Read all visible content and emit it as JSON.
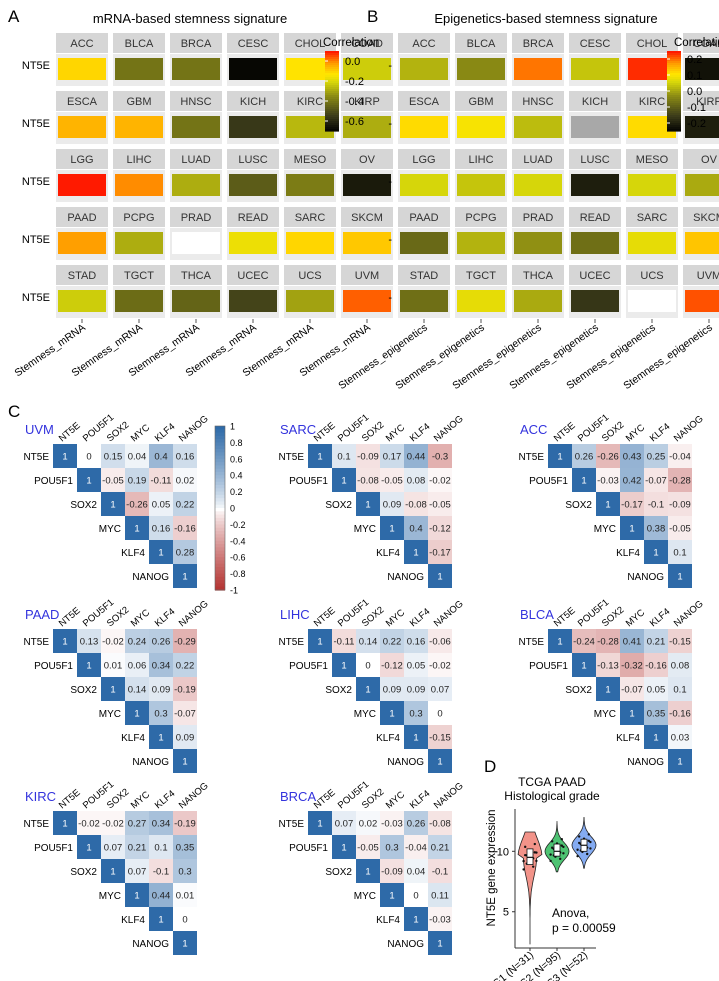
{
  "panelA": {
    "letter": "A",
    "title": "mRNA-based stemness signature",
    "row_label": "NT5E",
    "x_label": "Stemness_mRNA",
    "legend_title": "Correlation",
    "legend_ticks": [
      "0.0",
      "-0.2",
      "-0.4",
      "-0.6"
    ],
    "scale": {
      "min": -0.7,
      "max": 0.1
    },
    "rows": [
      [
        {
          "name": "ACC",
          "value": -0.1
        },
        {
          "name": "BLCA",
          "value": -0.4
        },
        {
          "name": "BRCA",
          "value": -0.4
        },
        {
          "name": "CESC",
          "value": -0.68
        },
        {
          "name": "CHOL",
          "value": -0.12
        },
        {
          "name": "COAD",
          "value": -0.22
        }
      ],
      [
        {
          "name": "ESCA",
          "value": -0.05
        },
        {
          "name": "GBM",
          "value": -0.05
        },
        {
          "name": "HNSC",
          "value": -0.4
        },
        {
          "name": "KICH",
          "value": -0.55
        },
        {
          "name": "KIRC",
          "value": -0.26
        },
        {
          "name": "KIRP",
          "value": -0.28
        }
      ],
      [
        {
          "name": "LGG",
          "value": 0.1
        },
        {
          "name": "LIHC",
          "value": 0.0
        },
        {
          "name": "LUAD",
          "value": -0.28
        },
        {
          "name": "LUSC",
          "value": -0.46
        },
        {
          "name": "MESO",
          "value": -0.38
        },
        {
          "name": "OV",
          "value": -0.63
        }
      ],
      [
        {
          "name": "PAAD",
          "value": -0.02
        },
        {
          "name": "PCPG",
          "value": -0.28
        },
        {
          "name": "PRAD",
          "value": null
        },
        {
          "name": "READ",
          "value": -0.16
        },
        {
          "name": "SARC",
          "value": -0.1
        },
        {
          "name": "SKCM",
          "value": -0.08
        }
      ],
      [
        {
          "name": "STAD",
          "value": -0.22
        },
        {
          "name": "TGCT",
          "value": -0.42
        },
        {
          "name": "THCA",
          "value": -0.44
        },
        {
          "name": "UCEC",
          "value": -0.52
        },
        {
          "name": "UCS",
          "value": -0.3
        },
        {
          "name": "UVM",
          "value": 0.04
        }
      ]
    ]
  },
  "panelB": {
    "letter": "B",
    "title": "Epigenetics-based stemness signature",
    "row_label": "-",
    "x_label": "Stemness_epigenetics",
    "legend_title": "Correlation",
    "legend_ticks": [
      "0.2",
      "0.1",
      "0.0",
      "-0.1",
      "-0.2"
    ],
    "scale": {
      "min": -0.25,
      "max": 0.25
    },
    "rows": [
      [
        {
          "name": "ACC",
          "value": 0.02
        },
        {
          "name": "BLCA",
          "value": -0.03
        },
        {
          "name": "BRCA",
          "value": 0.2
        },
        {
          "name": "CESC",
          "value": 0.04
        },
        {
          "name": "CHOL",
          "value": 0.24
        },
        {
          "name": "COAD",
          "value": -0.22
        }
      ],
      [
        {
          "name": "ESCA",
          "value": 0.12
        },
        {
          "name": "GBM",
          "value": 0.1
        },
        {
          "name": "HNSC",
          "value": 0.03
        },
        {
          "name": "KICH",
          "value": null
        },
        {
          "name": "KIRC",
          "value": 0.12
        },
        {
          "name": "KIRP",
          "value": -0.2
        }
      ],
      [
        {
          "name": "LGG",
          "value": 0.06
        },
        {
          "name": "LIHC",
          "value": 0.04
        },
        {
          "name": "LUAD",
          "value": 0.06
        },
        {
          "name": "LUSC",
          "value": -0.2
        },
        {
          "name": "MESO",
          "value": 0.06
        },
        {
          "name": "OV",
          "value": 0.01
        }
      ],
      [
        {
          "name": "PAAD",
          "value": -0.08
        },
        {
          "name": "PCPG",
          "value": 0.02
        },
        {
          "name": "PRAD",
          "value": -0.02
        },
        {
          "name": "READ",
          "value": -0.07
        },
        {
          "name": "SARC",
          "value": 0.08
        },
        {
          "name": "SKCM",
          "value": 0.14
        }
      ],
      [
        {
          "name": "STAD",
          "value": -0.07
        },
        {
          "name": "TGCT",
          "value": 0.08
        },
        {
          "name": "THCA",
          "value": 0.01
        },
        {
          "name": "UCEC",
          "value": -0.16
        },
        {
          "name": "UCS",
          "value": null
        },
        {
          "name": "UVM",
          "value": 0.22
        }
      ]
    ]
  },
  "panelC": {
    "letter": "C",
    "genes": [
      "NT5E",
      "POU5F1",
      "SOX2",
      "MYC",
      "KLF4",
      "NANOG"
    ],
    "legend_ticks": [
      "1",
      "0.8",
      "0.6",
      "0.4",
      "0.2",
      "0",
      "-0.2",
      "-0.4",
      "-0.6",
      "-0.8",
      "-1"
    ],
    "accent": "#3333dd",
    "pos_color": "#2e6aa8",
    "neg_color": "#b2302e",
    "matrices": [
      {
        "name": "UVM",
        "values": [
          [
            1,
            0,
            0.15,
            0.04,
            0.4,
            0.16
          ],
          [
            1,
            -0.05,
            0.19,
            -0.11,
            0.02
          ],
          [
            1,
            -0.26,
            0.05,
            0.22
          ],
          [
            1,
            0.16,
            -0.16
          ],
          [
            1,
            0.28
          ],
          [
            1
          ]
        ]
      },
      {
        "name": "SARC",
        "values": [
          [
            1,
            0.1,
            -0.09,
            0.17,
            0.44,
            -0.3
          ],
          [
            1,
            -0.08,
            -0.05,
            0.08,
            -0.02
          ],
          [
            1,
            0.09,
            -0.08,
            -0.05
          ],
          [
            1,
            0.4,
            -0.12
          ],
          [
            1,
            -0.17
          ],
          [
            1
          ]
        ]
      },
      {
        "name": "ACC",
        "values": [
          [
            1,
            0.26,
            -0.26,
            0.43,
            0.25,
            -0.04
          ],
          [
            1,
            -0.03,
            0.42,
            -0.07,
            -0.28
          ],
          [
            1,
            -0.17,
            -0.1,
            -0.09
          ],
          [
            1,
            0.38,
            -0.05
          ],
          [
            1,
            0.1
          ],
          [
            1
          ]
        ]
      },
      {
        "name": "PAAD",
        "values": [
          [
            1,
            0.13,
            -0.02,
            0.24,
            0.26,
            -0.29
          ],
          [
            1,
            0.01,
            0.06,
            0.34,
            0.22
          ],
          [
            1,
            0.14,
            0.09,
            -0.19
          ],
          [
            1,
            0.3,
            -0.07
          ],
          [
            1,
            0.09
          ],
          [
            1
          ]
        ]
      },
      {
        "name": "LIHC",
        "values": [
          [
            1,
            -0.11,
            0.14,
            0.22,
            0.16,
            -0.06
          ],
          [
            1,
            0,
            -0.12,
            0.05,
            -0.02
          ],
          [
            1,
            0.09,
            0.09,
            0.07
          ],
          [
            1,
            0.3,
            0
          ],
          [
            1,
            -0.15
          ],
          [
            1
          ]
        ]
      },
      {
        "name": "BLCA",
        "values": [
          [
            1,
            -0.24,
            -0.28,
            0.41,
            0.21,
            -0.15
          ],
          [
            1,
            -0.13,
            -0.32,
            -0.16,
            0.08
          ],
          [
            1,
            -0.07,
            0.05,
            0.1
          ],
          [
            1,
            0.35,
            -0.16
          ],
          [
            1,
            0.03
          ],
          [
            1
          ]
        ]
      },
      {
        "name": "KIRC",
        "values": [
          [
            1,
            -0.02,
            -0.02,
            0.27,
            0.34,
            -0.19
          ],
          [
            1,
            0.07,
            0.21,
            0.1,
            0.35
          ],
          [
            1,
            0.07,
            -0.1,
            0.3
          ],
          [
            1,
            0.44,
            0.01
          ],
          [
            1,
            0
          ],
          [
            1
          ]
        ]
      },
      {
        "name": "BRCA",
        "values": [
          [
            1,
            0.07,
            0.02,
            -0.03,
            0.26,
            -0.08
          ],
          [
            1,
            -0.05,
            0.3,
            -0.04,
            0.21
          ],
          [
            1,
            -0.09,
            0.04,
            -0.1
          ],
          [
            1,
            0,
            0.11
          ],
          [
            1,
            -0.03
          ],
          [
            1
          ]
        ]
      }
    ]
  },
  "panelD": {
    "letter": "D",
    "title": "TCGA PAAD",
    "subtitle": "Histological grade",
    "ylabel": "NT5E gene expression",
    "annotation_line1": "Anova,",
    "annotation_line2": "p = 0.00059",
    "colors": [
      "#f08074",
      "#2fb85a",
      "#6f9cf0"
    ]
  },
  "chart_data": [
    {
      "type": "heatmap",
      "title": "mRNA-based stemness signature",
      "row": "NT5E",
      "xlabel": "Stemness_mRNA",
      "legend": "Correlation",
      "cells": {
        "ACC": -0.1,
        "BLCA": -0.4,
        "BRCA": -0.4,
        "CESC": -0.68,
        "CHOL": -0.12,
        "COAD": -0.22,
        "ESCA": -0.05,
        "GBM": -0.05,
        "HNSC": -0.4,
        "KICH": -0.55,
        "KIRC": -0.26,
        "KIRP": -0.28,
        "LGG": 0.1,
        "LIHC": 0.0,
        "LUAD": -0.28,
        "LUSC": -0.46,
        "MESO": -0.38,
        "OV": -0.63,
        "PAAD": -0.02,
        "PCPG": -0.28,
        "PRAD": null,
        "READ": -0.16,
        "SARC": -0.1,
        "SKCM": -0.08,
        "STAD": -0.22,
        "TGCT": -0.42,
        "THCA": -0.44,
        "UCEC": -0.52,
        "UCS": -0.3,
        "UVM": 0.04
      }
    },
    {
      "type": "heatmap",
      "title": "Epigenetics-based stemness signature",
      "xlabel": "Stemness_epigenetics",
      "legend": "Correlation",
      "cells": {
        "ACC": 0.02,
        "BLCA": -0.03,
        "BRCA": 0.2,
        "CESC": 0.04,
        "CHOL": 0.24,
        "COAD": -0.22,
        "ESCA": 0.12,
        "GBM": 0.1,
        "HNSC": 0.03,
        "KICH": null,
        "KIRC": 0.12,
        "KIRP": -0.2,
        "LGG": 0.06,
        "LIHC": 0.04,
        "LUAD": 0.06,
        "LUSC": -0.2,
        "MESO": 0.06,
        "OV": 0.01,
        "PAAD": -0.08,
        "PCPG": 0.02,
        "PRAD": -0.02,
        "READ": -0.07,
        "SARC": 0.08,
        "SKCM": 0.14,
        "STAD": -0.07,
        "TGCT": 0.08,
        "THCA": 0.01,
        "UCEC": -0.16,
        "UCS": null,
        "UVM": 0.22
      }
    },
    {
      "type": "heatmap",
      "title": "Correlation matrices (NT5E, POU5F1, SOX2, MYC, KLF4, NANOG)",
      "note": "see panelC.matrices for upper-triangular values per cancer",
      "cancers": [
        "UVM",
        "SARC",
        "ACC",
        "PAAD",
        "LIHC",
        "BLCA",
        "KIRC",
        "BRCA"
      ]
    },
    {
      "type": "violin",
      "title": "TCGA PAAD",
      "subtitle": "Histological grade",
      "categories": [
        "G1 (N=31)",
        "G2 (N=95)",
        "G3 (N=52)"
      ],
      "ylabel": "NT5E gene expression",
      "yticks": [
        5,
        10
      ],
      "ylim": [
        2,
        13.5
      ],
      "medians": [
        9.5,
        10.0,
        10.5
      ],
      "q1": [
        8.9,
        9.6,
        10.0
      ],
      "q3": [
        10.2,
        10.6,
        11.0
      ],
      "ranges": [
        [
          2.3,
          11.6
        ],
        [
          8.3,
          12.5
        ],
        [
          8.6,
          12.8
        ]
      ],
      "annotation": "Anova, p = 0.00059"
    }
  ]
}
